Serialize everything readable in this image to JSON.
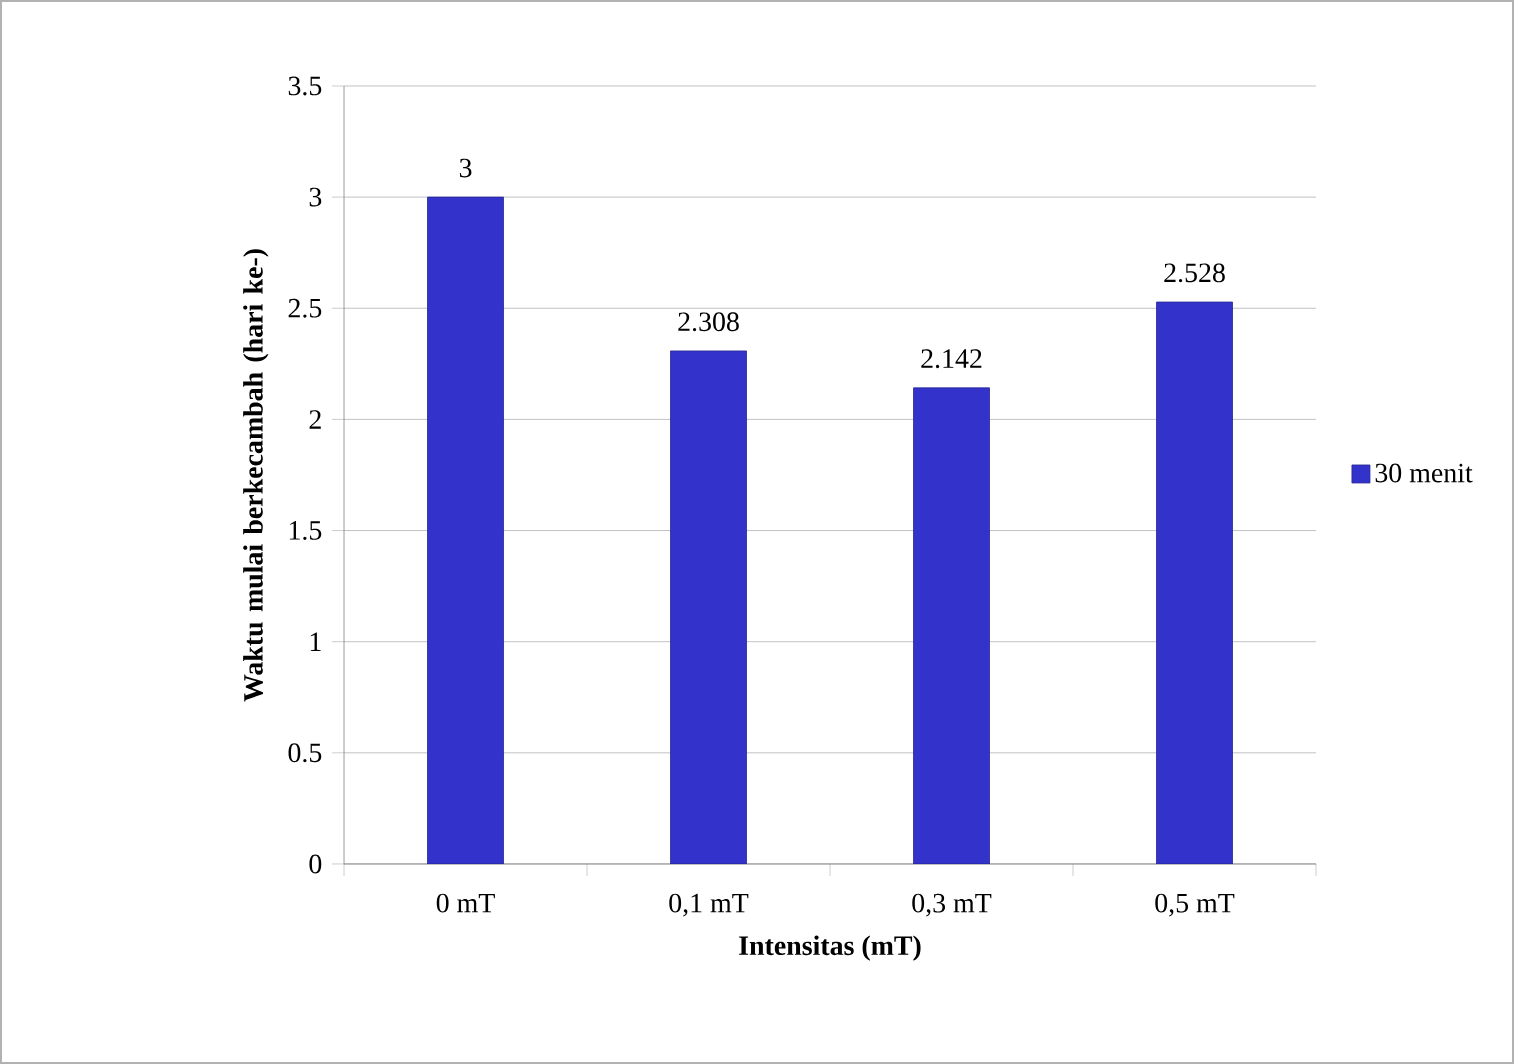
{
  "chart_data": {
    "type": "bar",
    "xlabel": "Intensitas (mT)",
    "ylabel": "Waktu mulai berkecambah (hari ke-)",
    "categories": [
      "0 mT",
      "0,1 mT",
      "0,3 mT",
      "0,5 mT"
    ],
    "series": [
      {
        "name": "30 menit",
        "color": "#3333cc",
        "values": [
          3,
          2.308,
          2.142,
          2.528
        ]
      }
    ],
    "ylim": [
      0,
      3.5
    ],
    "yticks": [
      0,
      0.5,
      1,
      1.5,
      2,
      2.5,
      3,
      3.5
    ],
    "grid": "y",
    "legend": "right",
    "data_labels": true
  }
}
